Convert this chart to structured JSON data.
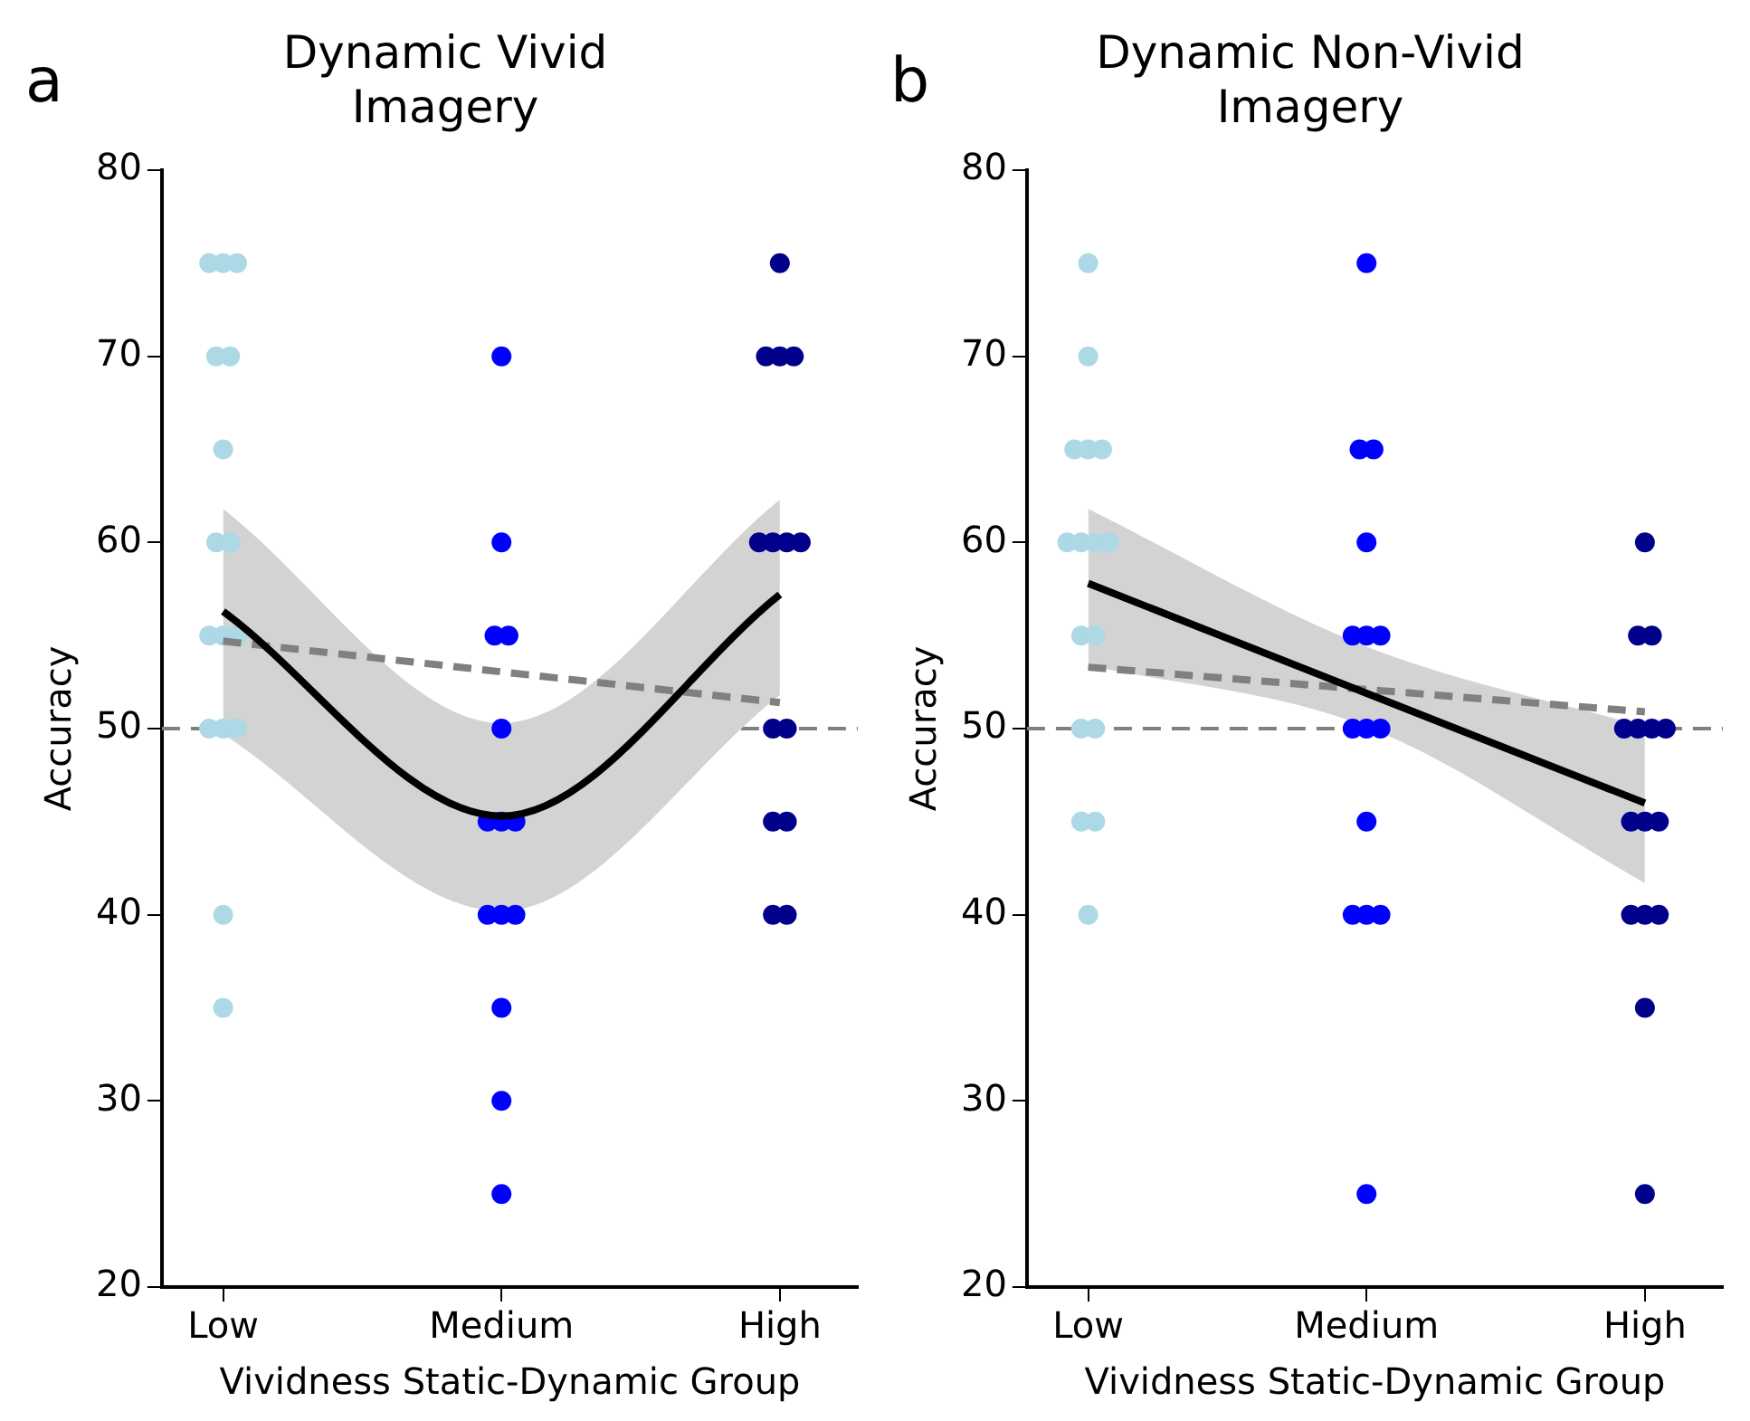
{
  "chart_data": [
    {
      "type": "scatter",
      "title": "Dynamic Vivid\nImagery",
      "xlabel": "Vividness Static-Dynamic Group",
      "ylabel": "Accuracy",
      "annotations": [
        "a"
      ],
      "categories": [
        "Low",
        "Medium",
        "High"
      ],
      "ylim": [
        20,
        80
      ],
      "yticks": [
        20,
        30,
        40,
        50,
        60,
        70,
        80
      ],
      "grid": false,
      "legend": false,
      "marker": "circle",
      "ref_lines": [
        {
          "axis": "y",
          "value": 50,
          "color": "#808080",
          "line_style": "dashed"
        }
      ],
      "series": [
        {
          "color": "#add8e6",
          "x": [
            "Low",
            "Low",
            "Low",
            "Low",
            "Low",
            "Low",
            "Low",
            "Low",
            "Low",
            "Low",
            "Low",
            "Low",
            "Low",
            "Low",
            "Low",
            "Low"
          ],
          "values": [
            75,
            75,
            75,
            70,
            70,
            65,
            60,
            60,
            55,
            55,
            55,
            50,
            50,
            50,
            40,
            35
          ]
        },
        {
          "color": "#0000ff",
          "x": [
            "Medium",
            "Medium",
            "Medium",
            "Medium",
            "Medium",
            "Medium",
            "Medium",
            "Medium",
            "Medium",
            "Medium",
            "Medium",
            "Medium",
            "Medium",
            "Medium"
          ],
          "values": [
            70,
            60,
            55,
            55,
            50,
            45,
            45,
            45,
            40,
            40,
            40,
            35,
            30,
            25
          ]
        },
        {
          "color": "#00008b",
          "x": [
            "High",
            "High",
            "High",
            "High",
            "High",
            "High",
            "High",
            "High",
            "High",
            "High",
            "High",
            "High",
            "High",
            "High"
          ],
          "values": [
            75,
            70,
            70,
            70,
            60,
            60,
            60,
            60,
            50,
            50,
            45,
            45,
            40,
            40
          ]
        },
        {
          "type": "line",
          "color": "#000000",
          "line_style": "solid",
          "marker": "none",
          "x": [
            "Low",
            "Medium",
            "High"
          ],
          "values": [
            56.3,
            45.3,
            57.2
          ],
          "lower": [
            49.7,
            40.2,
            51.8
          ],
          "upper": [
            61.8,
            50.3,
            62.3
          ]
        },
        {
          "type": "line",
          "color": "#808080",
          "line_style": "dashed",
          "marker": "none",
          "x": [
            "Low",
            "High"
          ],
          "values": [
            54.7,
            51.4
          ]
        }
      ]
    },
    {
      "type": "scatter",
      "title": "Dynamic Non-Vivid\nImagery",
      "xlabel": "Vividness Static-Dynamic Group",
      "ylabel": "Accuracy",
      "annotations": [
        "b"
      ],
      "categories": [
        "Low",
        "Medium",
        "High"
      ],
      "ylim": [
        20,
        80
      ],
      "yticks": [
        20,
        30,
        40,
        50,
        60,
        70,
        80
      ],
      "grid": false,
      "legend": false,
      "marker": "circle",
      "ref_lines": [
        {
          "axis": "y",
          "value": 50,
          "color": "#808080",
          "line_style": "dashed"
        }
      ],
      "series": [
        {
          "color": "#add8e6",
          "x": [
            "Low",
            "Low",
            "Low",
            "Low",
            "Low",
            "Low",
            "Low",
            "Low",
            "Low",
            "Low",
            "Low",
            "Low",
            "Low",
            "Low",
            "Low",
            "Low"
          ],
          "values": [
            75,
            70,
            65,
            65,
            65,
            60,
            60,
            60,
            60,
            55,
            55,
            50,
            50,
            45,
            45,
            40
          ]
        },
        {
          "color": "#0000ff",
          "x": [
            "Medium",
            "Medium",
            "Medium",
            "Medium",
            "Medium",
            "Medium",
            "Medium",
            "Medium",
            "Medium",
            "Medium",
            "Medium",
            "Medium",
            "Medium",
            "Medium",
            "Medium"
          ],
          "values": [
            75,
            65,
            65,
            60,
            55,
            55,
            55,
            50,
            50,
            50,
            45,
            40,
            40,
            40,
            25
          ]
        },
        {
          "color": "#00008b",
          "x": [
            "High",
            "High",
            "High",
            "High",
            "High",
            "High",
            "High",
            "High",
            "High",
            "High",
            "High",
            "High",
            "High",
            "High",
            "High"
          ],
          "values": [
            60,
            55,
            55,
            50,
            50,
            50,
            50,
            45,
            45,
            45,
            40,
            40,
            40,
            35,
            25
          ]
        },
        {
          "type": "line",
          "color": "#000000",
          "line_style": "solid",
          "marker": "none",
          "x": [
            "Low",
            "Medium",
            "High"
          ],
          "values": [
            57.8,
            51.9,
            46
          ],
          "lower": [
            53.4,
            50.1,
            41.7
          ],
          "upper": [
            61.8,
            54.4,
            50.1
          ]
        },
        {
          "type": "line",
          "color": "#808080",
          "line_style": "dashed",
          "marker": "none",
          "x": [
            "Low",
            "High"
          ],
          "values": [
            53.3,
            50.9
          ]
        }
      ]
    }
  ]
}
